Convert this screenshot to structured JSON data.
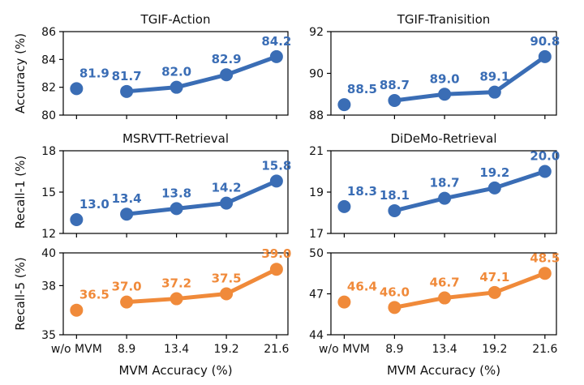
{
  "colors": {
    "blue": "#3a6db5",
    "orange": "#f08a3a"
  },
  "chart_data": [
    {
      "type": "line",
      "title": "TGIF-Action",
      "ylabel": "Accuracy (%)",
      "xlabel": "",
      "categories": [
        "w/o MVM",
        "8.9",
        "13.4",
        "19.2",
        "21.6"
      ],
      "series": [
        {
          "values": [
            81.9,
            81.7,
            82.0,
            82.9,
            84.2
          ],
          "labels": [
            "81.9",
            "81.7",
            "82.0",
            "82.9",
            "84.2"
          ]
        }
      ],
      "color": "blue",
      "ylim": [
        80,
        86
      ],
      "yticks": [
        80,
        82,
        84,
        86
      ],
      "show_xticklabels": false
    },
    {
      "type": "line",
      "title": "TGIF-Tranisition",
      "ylabel": "",
      "xlabel": "",
      "categories": [
        "w/o MVM",
        "8.9",
        "13.4",
        "19.2",
        "21.6"
      ],
      "series": [
        {
          "values": [
            88.5,
            88.7,
            89.0,
            89.1,
            90.8
          ],
          "labels": [
            "88.5",
            "88.7",
            "89.0",
            "89.1",
            "90.8"
          ]
        }
      ],
      "color": "blue",
      "ylim": [
        88,
        92
      ],
      "yticks": [
        88,
        90,
        92
      ],
      "show_xticklabels": false
    },
    {
      "type": "line",
      "title": "MSRVTT-Retrieval",
      "ylabel": "Recall-1 (%)",
      "xlabel": "",
      "categories": [
        "w/o MVM",
        "8.9",
        "13.4",
        "19.2",
        "21.6"
      ],
      "series": [
        {
          "values": [
            13.0,
            13.4,
            13.8,
            14.2,
            15.8
          ],
          "labels": [
            "13.0",
            "13.4",
            "13.8",
            "14.2",
            "15.8"
          ]
        }
      ],
      "color": "blue",
      "ylim": [
        12,
        18
      ],
      "yticks": [
        12,
        15,
        18
      ],
      "show_xticklabels": false
    },
    {
      "type": "line",
      "title": "DiDeMo-Retrieval",
      "ylabel": "",
      "xlabel": "",
      "categories": [
        "w/o MVM",
        "8.9",
        "13.4",
        "19.2",
        "21.6"
      ],
      "series": [
        {
          "values": [
            18.3,
            18.1,
            18.7,
            19.2,
            20.0
          ],
          "labels": [
            "18.3",
            "18.1",
            "18.7",
            "19.2",
            "20.0"
          ]
        }
      ],
      "color": "blue",
      "ylim": [
        17,
        21
      ],
      "yticks": [
        17,
        19,
        21
      ],
      "show_xticklabels": false
    },
    {
      "type": "line",
      "title": "",
      "ylabel": "Recall-5 (%)",
      "xlabel": "MVM Accuracy (%)",
      "categories": [
        "w/o MVM",
        "8.9",
        "13.4",
        "19.2",
        "21.6"
      ],
      "series": [
        {
          "values": [
            36.5,
            37.0,
            37.2,
            37.5,
            39.0
          ],
          "labels": [
            "36.5",
            "37.0",
            "37.2",
            "37.5",
            "39.0"
          ]
        }
      ],
      "color": "orange",
      "ylim": [
        35,
        40
      ],
      "yticks": [
        35,
        38,
        40
      ],
      "show_xticklabels": true
    },
    {
      "type": "line",
      "title": "",
      "ylabel": "",
      "xlabel": "MVM Accuracy (%)",
      "categories": [
        "w/o MVM",
        "8.9",
        "13.4",
        "19.2",
        "21.6"
      ],
      "series": [
        {
          "values": [
            46.4,
            46.0,
            46.7,
            47.1,
            48.5
          ],
          "labels": [
            "46.4",
            "46.0",
            "46.7",
            "47.1",
            "48.5"
          ]
        }
      ],
      "color": "orange",
      "ylim": [
        44,
        50
      ],
      "yticks": [
        44,
        47,
        50
      ],
      "show_xticklabels": true
    }
  ]
}
